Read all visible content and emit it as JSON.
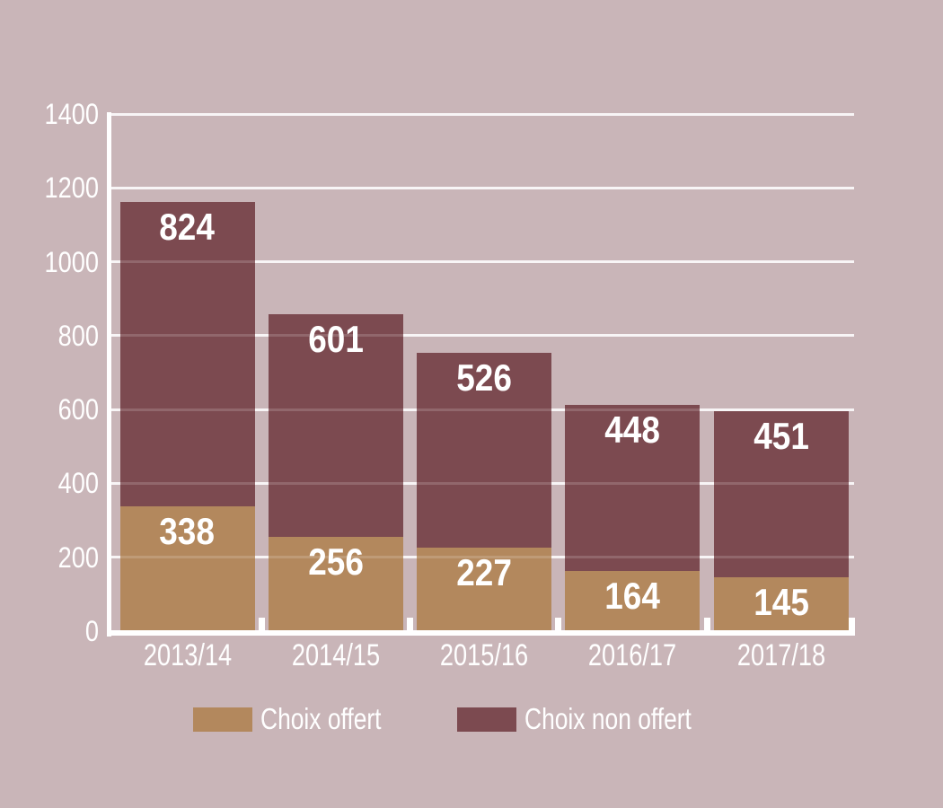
{
  "chart_data": {
    "type": "bar",
    "stacked": true,
    "title": "",
    "xlabel": "",
    "ylabel": "",
    "categories": [
      "2013/14",
      "2014/15",
      "2015/16",
      "2016/17",
      "2017/18"
    ],
    "series": [
      {
        "name": "Choix offert",
        "color": "#b3885d",
        "values": [
          338,
          256,
          227,
          164,
          145
        ]
      },
      {
        "name": "Choix non offert",
        "color": "#7c4a50",
        "values": [
          824,
          601,
          526,
          448,
          451
        ]
      }
    ],
    "ylim": [
      0,
      1400
    ],
    "yticks": [
      0,
      200,
      400,
      600,
      800,
      1000,
      1200,
      1400
    ],
    "grid": true,
    "legend_position": "bottom",
    "bar_value_labels_shown": true
  },
  "style": {
    "background": "#c9b5b8",
    "label_color": "#ffffff",
    "axis_color": "#ffffff",
    "gridline_color": "rgba(255,255,255,0.85)",
    "gridline_over_bar_color": "rgba(255,255,255,0.16)",
    "tick_color": "#ffffff"
  }
}
